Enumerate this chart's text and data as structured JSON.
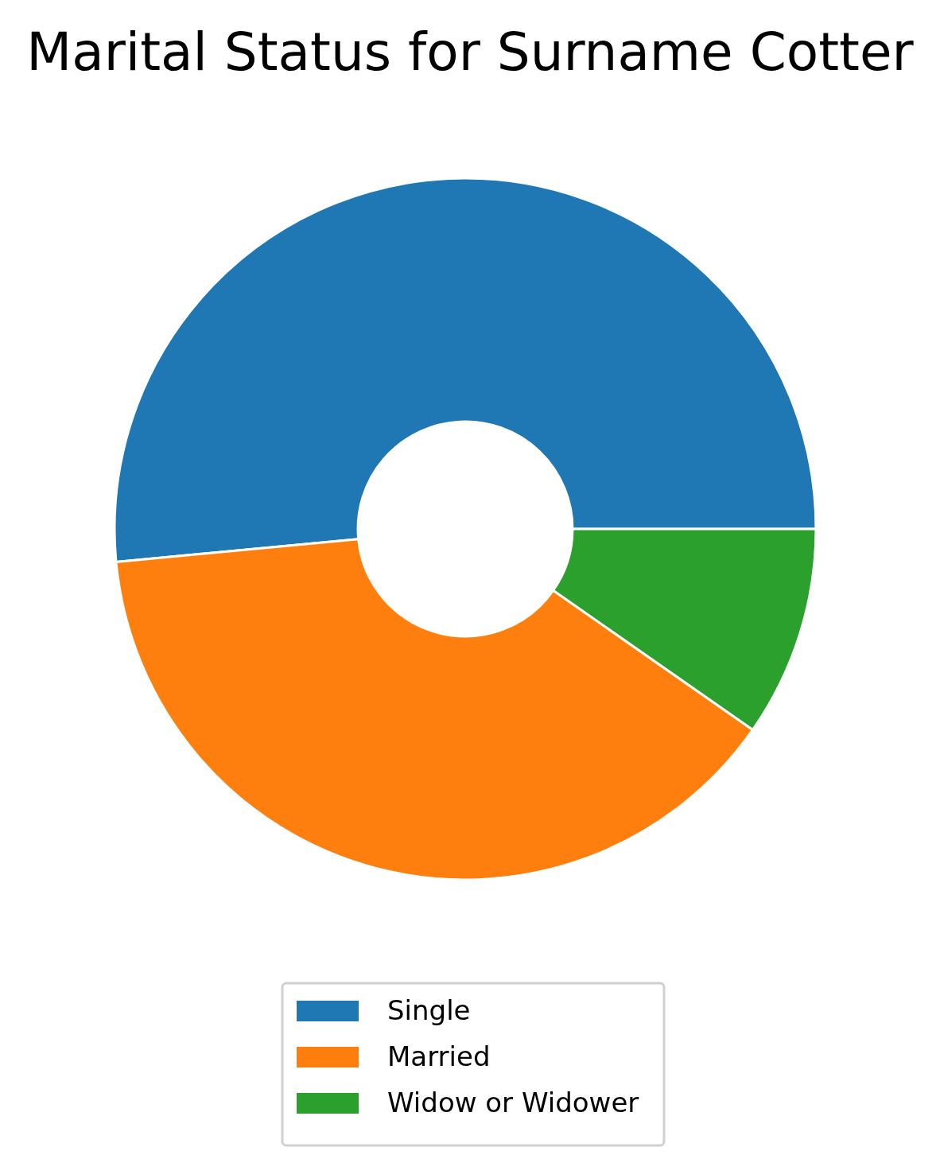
{
  "chart_data": {
    "type": "donut",
    "title": "Marital Status for Surname Cotter",
    "categories": [
      "Single",
      "Married",
      "Widow or Widower"
    ],
    "values": [
      51.5,
      38.8,
      9.7
    ],
    "colors": [
      "#1f77b4",
      "#ff7f0e",
      "#2ca02c"
    ],
    "legend": "bottom"
  }
}
